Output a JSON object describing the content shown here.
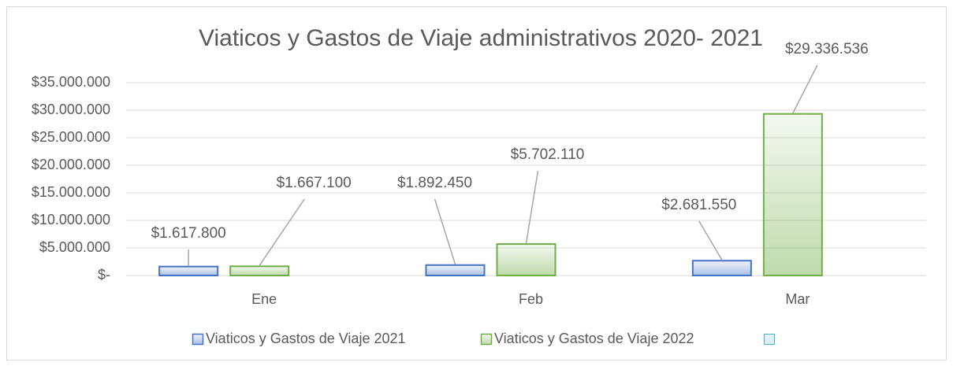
{
  "chart_data": {
    "type": "bar",
    "title": "Viaticos y Gastos de Viaje administrativos 2020- 2021",
    "categories": [
      "Ene",
      "Feb",
      "Mar"
    ],
    "series": [
      {
        "name": "Viaticos y Gastos de Viaje 2021",
        "color": "#4472c4",
        "values": [
          1617800,
          1892450,
          2681550
        ],
        "value_labels": [
          "$1.617.800",
          "$1.892.450",
          "$2.681.550"
        ]
      },
      {
        "name": "Viaticos y Gastos de Viaje 2022",
        "color": "#70ad47",
        "values": [
          1667100,
          5702110,
          29336536
        ],
        "value_labels": [
          "$1.667.100",
          "$5.702.110",
          "$29.336.536"
        ]
      }
    ],
    "ylim": [
      0,
      35000000
    ],
    "yticks": [
      {
        "value": 0,
        "label": "$-"
      },
      {
        "value": 5000000,
        "label": "$5.000.000"
      },
      {
        "value": 10000000,
        "label": "$10.000.000"
      },
      {
        "value": 15000000,
        "label": "$15.000.000"
      },
      {
        "value": 20000000,
        "label": "$20.000.000"
      },
      {
        "value": 25000000,
        "label": "$25.000.000"
      },
      {
        "value": 30000000,
        "label": "$30.000.000"
      },
      {
        "value": 35000000,
        "label": "$35.000.000"
      }
    ],
    "grid": true
  }
}
